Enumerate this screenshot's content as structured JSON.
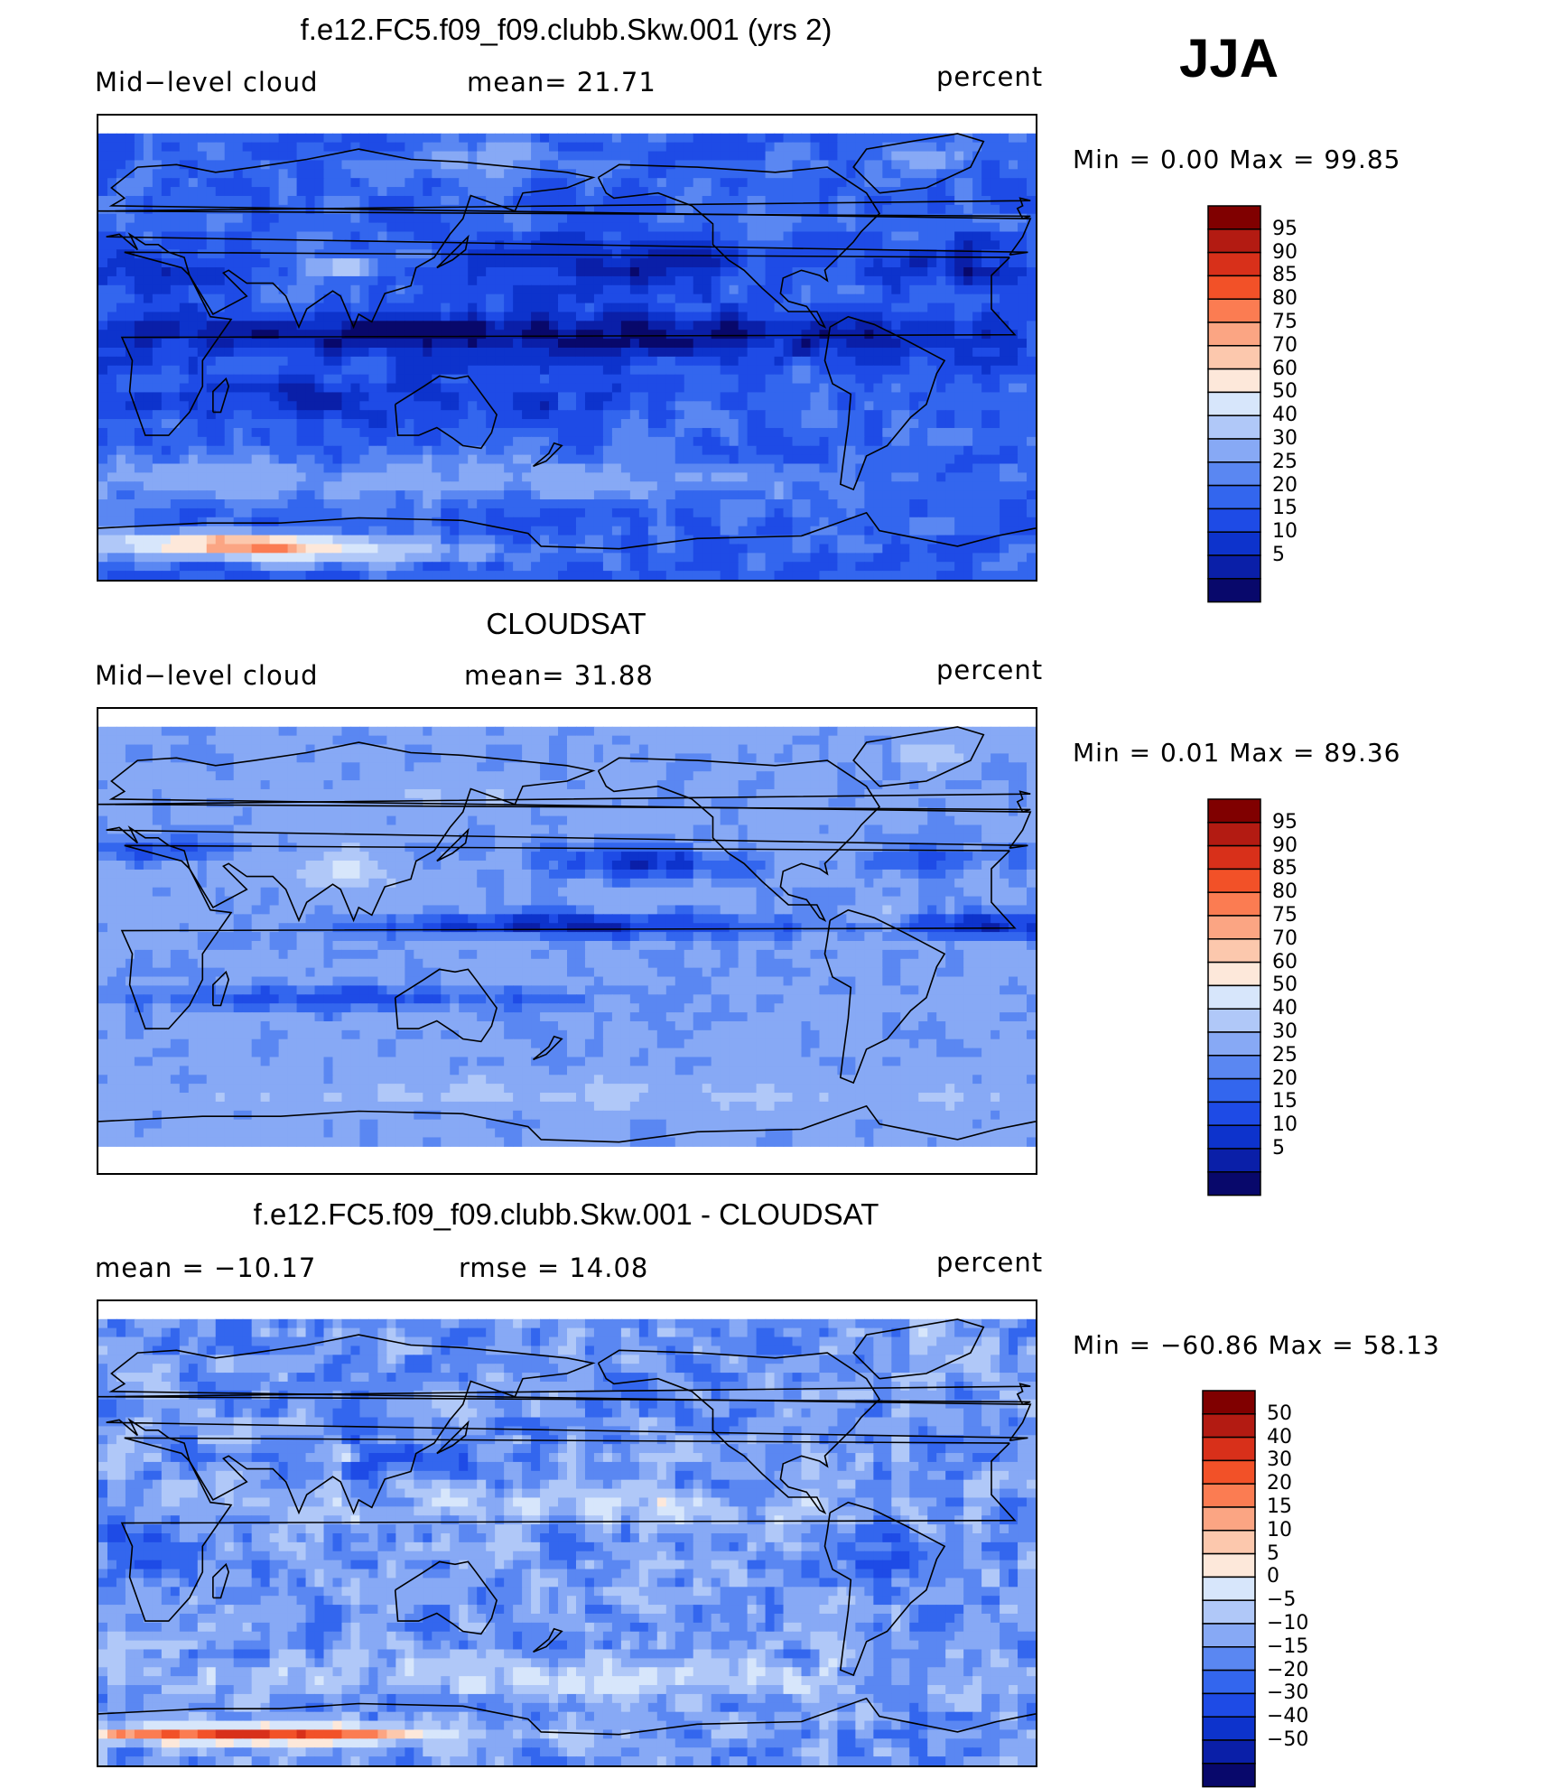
{
  "season": "JJA",
  "colors": {
    "abs_scale": [
      "#08086b",
      "#0a1fa8",
      "#0d33cc",
      "#1e4be6",
      "#3366ee",
      "#5a87f2",
      "#87a9f5",
      "#b0c8f8",
      "#d7e6fb",
      "#fde8da",
      "#fcc8ad",
      "#fba583",
      "#fb7c52",
      "#f25128",
      "#d8301a",
      "#b31b12",
      "#800000"
    ],
    "diff_scale": [
      "#08086b",
      "#0a1fa8",
      "#0d33cc",
      "#1e4be6",
      "#3366ee",
      "#5a87f2",
      "#87a9f5",
      "#b0c8f8",
      "#d7e6fb",
      "#fde8da",
      "#fcc8ad",
      "#fba583",
      "#fb7c52",
      "#f25128",
      "#d8301a",
      "#b31b12",
      "#800000"
    ],
    "coast": "#000000"
  },
  "chart_data": [
    {
      "type": "heatmap",
      "title": "f.e12.FC5.f09_f09.clubb.Skw.001 (yrs 2)",
      "left_label": "Mid−level cloud",
      "center_label": "mean=   21.71",
      "units": "percent",
      "minmax": "Min  =     0.00  Max  =    99.85",
      "min": 0.0,
      "max": 99.85,
      "mean": 21.71,
      "legend_levels": [
        "95",
        "90",
        "85",
        "80",
        "75",
        "70",
        "60",
        "50",
        "40",
        "30",
        "25",
        "20",
        "15",
        "10",
        "5"
      ]
    },
    {
      "type": "heatmap",
      "title": "CLOUDSAT",
      "left_label": "Mid−level cloud",
      "center_label": "mean=   31.88",
      "units": "percent",
      "minmax": "Min  =     0.01  Max  =    89.36",
      "min": 0.01,
      "max": 89.36,
      "mean": 31.88,
      "legend_levels": [
        "95",
        "90",
        "85",
        "80",
        "75",
        "70",
        "60",
        "50",
        "40",
        "30",
        "25",
        "20",
        "15",
        "10",
        "5"
      ]
    },
    {
      "type": "heatmap",
      "title": "f.e12.FC5.f09_f09.clubb.Skw.001 - CLOUDSAT",
      "left_label": "mean  =  −10.17",
      "center_label": "rmse  =    14.08",
      "units": "percent",
      "minmax": "Min  = −60.86  Max  =    58.13",
      "min": -60.86,
      "max": 58.13,
      "mean": -10.17,
      "rmse": 14.08,
      "legend_levels": [
        "50",
        "40",
        "30",
        "20",
        "15",
        "10",
        "5",
        "0",
        "−5",
        "−10",
        "−15",
        "−20",
        "−30",
        "−40",
        "−50"
      ]
    }
  ]
}
